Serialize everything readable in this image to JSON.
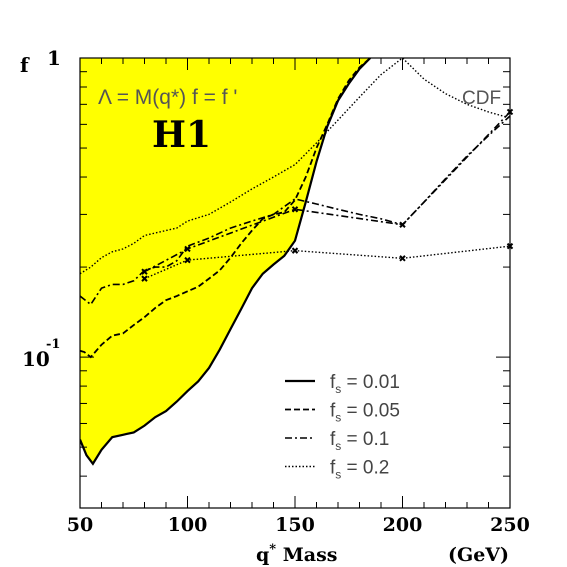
{
  "chart_data": {
    "type": "line",
    "experiment": "H1",
    "annotation": "Λ = M(q*)    f = f '",
    "comparison_label": "CDF",
    "ylabel": "f",
    "xlabel": "q* Mass",
    "xunit": "(GeV)",
    "xlim": [
      50,
      250
    ],
    "ylim": [
      0.0313,
      1
    ],
    "yscale": "log",
    "x_ticks": [
      50,
      100,
      150,
      200,
      250
    ],
    "y_tick_labels": {
      "top": "1",
      "mid_base": "10",
      "mid_exp": "-1"
    },
    "grid": false,
    "legend_position": "bottom-right",
    "excluded_region_color": "#ffff00",
    "series": [
      {
        "name": "fs = 0.01",
        "legend_label": "f_s = 0.01",
        "style": "solid",
        "x": [
          50,
          53,
          56,
          60,
          65,
          70,
          75,
          80,
          85,
          90,
          95,
          100,
          105,
          110,
          115,
          120,
          125,
          130,
          135,
          140,
          145,
          150,
          155,
          160,
          165,
          170,
          175,
          180,
          185
        ],
        "y": [
          0.053,
          0.047,
          0.044,
          0.049,
          0.054,
          0.055,
          0.056,
          0.059,
          0.063,
          0.066,
          0.071,
          0.077,
          0.083,
          0.092,
          0.106,
          0.124,
          0.145,
          0.17,
          0.19,
          0.204,
          0.218,
          0.245,
          0.33,
          0.45,
          0.59,
          0.72,
          0.82,
          0.92,
          1.0
        ]
      },
      {
        "name": "fs = 0.05",
        "legend_label": "f_s = 0.05",
        "style": "dashed",
        "x": [
          50,
          52,
          55,
          60,
          65,
          70,
          75,
          80,
          85,
          90,
          95,
          100,
          105,
          110,
          115,
          120,
          125,
          130,
          135,
          140,
          145,
          150,
          155,
          160,
          165,
          170,
          175,
          180,
          185
        ],
        "y": [
          0.105,
          0.104,
          0.1,
          0.11,
          0.118,
          0.12,
          0.128,
          0.136,
          0.146,
          0.155,
          0.16,
          0.166,
          0.172,
          0.183,
          0.195,
          0.215,
          0.24,
          0.265,
          0.29,
          0.3,
          0.305,
          0.335,
          0.4,
          0.5,
          0.6,
          0.73,
          0.84,
          0.93,
          1.0
        ]
      },
      {
        "name": "fs = 0.1",
        "legend_label": "f_s = 0.1",
        "style": "dashdot",
        "x": [
          50,
          55,
          60,
          65,
          70,
          75,
          80,
          85,
          90,
          95,
          100,
          110,
          120,
          130,
          140,
          150,
          160,
          170,
          180,
          190,
          200,
          210,
          220,
          230,
          240,
          250
        ],
        "y": [
          0.16,
          0.15,
          0.17,
          0.175,
          0.175,
          0.18,
          0.195,
          0.2,
          0.2,
          0.21,
          0.235,
          0.25,
          0.27,
          0.285,
          0.3,
          0.338,
          0.325,
          0.312,
          0.3,
          0.29,
          0.277,
          0.33,
          0.395,
          0.47,
          0.55,
          0.64
        ]
      },
      {
        "name": "fs = 0.2",
        "legend_label": "f_s = 0.2",
        "style": "dotted",
        "x": [
          50,
          55,
          60,
          65,
          70,
          75,
          80,
          85,
          90,
          95,
          100,
          110,
          120,
          130,
          140,
          150,
          160,
          170,
          180,
          190,
          200,
          210,
          220,
          230,
          240,
          250
        ],
        "y": [
          0.19,
          0.2,
          0.215,
          0.225,
          0.23,
          0.24,
          0.255,
          0.26,
          0.265,
          0.27,
          0.285,
          0.3,
          0.33,
          0.365,
          0.4,
          0.44,
          0.52,
          0.62,
          0.74,
          0.88,
          1.0,
          0.85,
          0.76,
          0.7,
          0.66,
          0.63
        ]
      }
    ],
    "cdf_points": [
      {
        "x": 80,
        "y": 0.193
      },
      {
        "x": 80,
        "y": 0.183
      },
      {
        "x": 100,
        "y": 0.23
      },
      {
        "x": 100,
        "y": 0.211
      },
      {
        "x": 150,
        "y": 0.312
      },
      {
        "x": 150,
        "y": 0.227
      },
      {
        "x": 200,
        "y": 0.277
      },
      {
        "x": 200,
        "y": 0.214
      },
      {
        "x": 250,
        "y": 0.66
      },
      {
        "x": 250,
        "y": 0.235
      }
    ],
    "cdf_lines": [
      {
        "style": "dashdot",
        "x": [
          80,
          100,
          150,
          200,
          250
        ],
        "y": [
          0.193,
          0.23,
          0.312,
          0.277,
          0.66
        ]
      },
      {
        "style": "dotted",
        "x": [
          80,
          100,
          150,
          200,
          250
        ],
        "y": [
          0.183,
          0.211,
          0.227,
          0.214,
          0.235
        ]
      }
    ]
  }
}
